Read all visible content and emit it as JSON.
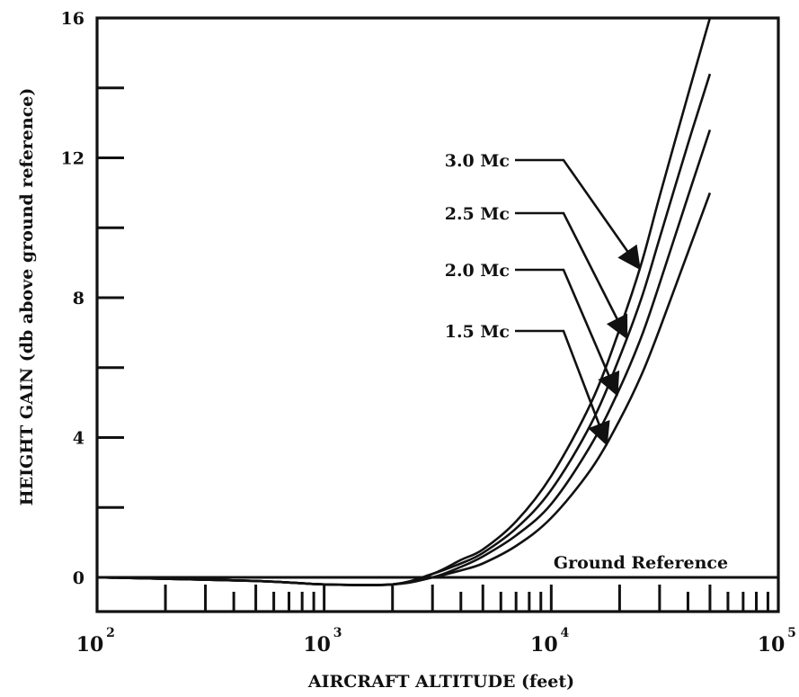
{
  "chart_data": {
    "type": "line",
    "title": "",
    "xlabel": "AIRCRAFT ALTITUDE (feet)",
    "ylabel": "HEIGHT GAIN (db above ground reference)",
    "x_scale": "log",
    "xlim": [
      100,
      100000
    ],
    "ylim": [
      0,
      16
    ],
    "x_tick_labels": [
      {
        "base": "10",
        "exp": "2",
        "value": 100
      },
      {
        "base": "10",
        "exp": "3",
        "value": 1000
      },
      {
        "base": "10",
        "exp": "4",
        "value": 10000
      },
      {
        "base": "10",
        "exp": "5",
        "value": 100000
      }
    ],
    "y_tick_labels": [
      "0",
      "4",
      "8",
      "12",
      "16"
    ],
    "y_ticks": [
      0,
      4,
      8,
      12,
      16
    ],
    "y_minor_ticks": [
      2,
      6,
      10,
      14
    ],
    "grid": false,
    "legend": "none",
    "reference_line": {
      "label": "Ground Reference",
      "y": 0
    },
    "series": [
      {
        "name": "3.0 Mc",
        "x": [
          100,
          500,
          1000,
          2000,
          3000,
          4000,
          5000,
          7000,
          10000,
          15000,
          20000,
          25000,
          30000,
          40000,
          50000
        ],
        "values": [
          0,
          -0.1,
          -0.2,
          -0.2,
          0.1,
          0.5,
          0.8,
          1.6,
          2.9,
          5.0,
          7.1,
          9.0,
          10.9,
          13.8,
          16.0
        ]
      },
      {
        "name": "2.5 Mc",
        "x": [
          100,
          500,
          1000,
          2000,
          3000,
          4000,
          5000,
          7000,
          10000,
          15000,
          20000,
          25000,
          30000,
          40000,
          50000
        ],
        "values": [
          0,
          -0.1,
          -0.2,
          -0.2,
          0.1,
          0.4,
          0.7,
          1.4,
          2.5,
          4.4,
          6.3,
          8.0,
          9.7,
          12.4,
          14.4
        ]
      },
      {
        "name": "2.0 Mc",
        "x": [
          100,
          500,
          1000,
          2000,
          3000,
          4000,
          5000,
          7000,
          10000,
          15000,
          20000,
          25000,
          30000,
          40000,
          50000
        ],
        "values": [
          0,
          -0.1,
          -0.2,
          -0.2,
          0.0,
          0.3,
          0.6,
          1.2,
          2.1,
          3.8,
          5.4,
          6.9,
          8.4,
          10.9,
          12.8
        ]
      },
      {
        "name": "1.5 Mc",
        "x": [
          100,
          500,
          1000,
          2000,
          3000,
          4000,
          5000,
          7000,
          10000,
          15000,
          20000,
          25000,
          30000,
          40000,
          50000
        ],
        "values": [
          0,
          -0.1,
          -0.2,
          -0.2,
          0.0,
          0.2,
          0.4,
          0.9,
          1.7,
          3.1,
          4.5,
          5.8,
          7.1,
          9.3,
          11.0
        ]
      }
    ]
  }
}
